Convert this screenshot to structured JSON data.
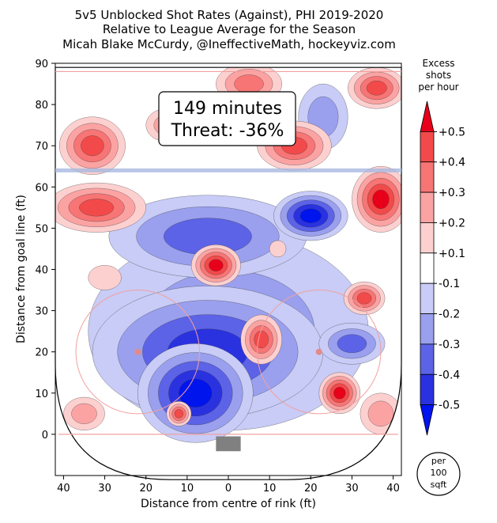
{
  "title": {
    "line1": "5v5 Unblocked Shot Rates (Against), PHI 2019-2020",
    "line2": "Relative to League Average for the Season",
    "line3": "Micah Blake McCurdy, @IneffectiveMath, hockeyviz.com"
  },
  "annotation": {
    "minutes": "149 minutes",
    "threat": "Threat: -36%"
  },
  "colorbar": {
    "title_lines": [
      "Excess",
      "shots",
      "per hour"
    ],
    "levels": [
      "+0.5",
      "+0.4",
      "+0.3",
      "+0.2",
      "+0.1",
      "-0.1",
      "-0.2",
      "-0.3",
      "-0.4",
      "-0.5"
    ],
    "colors": [
      "#e8001a",
      "#f24a4a",
      "#f77575",
      "#fba3a3",
      "#fdd0d0",
      "#ffffff",
      "#c8ccf6",
      "#9aa0ee",
      "#5c63e6",
      "#2a32e0",
      "#0014ee"
    ]
  },
  "unit_badge": [
    "per",
    "100",
    "sqft"
  ],
  "chart_data": {
    "type": "heatmap",
    "xlabel": "Distance from centre of rink (ft)",
    "ylabel": "Distance from goal line (ft)",
    "xlim": [
      -42,
      42
    ],
    "ylim": [
      -10,
      90
    ],
    "x_ticks": [
      40,
      30,
      20,
      10,
      0,
      10,
      20,
      30,
      40
    ],
    "y_ticks": [
      0,
      10,
      20,
      30,
      40,
      50,
      60,
      70,
      80,
      90
    ],
    "colorbar_range": [
      -0.5,
      0.5
    ],
    "regions": [
      {
        "x": 0,
        "y": 25,
        "rx": 34,
        "ry": 24,
        "value": -0.2
      },
      {
        "x": -5,
        "y": 20,
        "rx": 28,
        "ry": 16,
        "value": -0.4
      },
      {
        "x": -8,
        "y": 10,
        "rx": 14,
        "ry": 12,
        "value": -0.5
      },
      {
        "x": -5,
        "y": 48,
        "rx": 24,
        "ry": 10,
        "value": -0.3
      },
      {
        "x": 20,
        "y": 53,
        "rx": 9,
        "ry": 6,
        "value": -0.5
      },
      {
        "x": 30,
        "y": 22,
        "rx": 8,
        "ry": 5,
        "value": -0.3
      },
      {
        "x": 23,
        "y": 77,
        "rx": 6,
        "ry": 8,
        "value": -0.2
      },
      {
        "x": -33,
        "y": 70,
        "rx": 8,
        "ry": 7,
        "value": 0.4
      },
      {
        "x": -32,
        "y": 55,
        "rx": 12,
        "ry": 6,
        "value": 0.4
      },
      {
        "x": -15,
        "y": 75,
        "rx": 5,
        "ry": 4,
        "value": 0.2
      },
      {
        "x": 5,
        "y": 85,
        "rx": 8,
        "ry": 5,
        "value": 0.3
      },
      {
        "x": 16,
        "y": 70,
        "rx": 9,
        "ry": 6,
        "value": 0.4
      },
      {
        "x": 36,
        "y": 84,
        "rx": 7,
        "ry": 5,
        "value": 0.4
      },
      {
        "x": 37,
        "y": 57,
        "rx": 7,
        "ry": 8,
        "value": 0.5
      },
      {
        "x": -3,
        "y": 41,
        "rx": 6,
        "ry": 5,
        "value": 0.5
      },
      {
        "x": 33,
        "y": 33,
        "rx": 5,
        "ry": 4,
        "value": 0.4
      },
      {
        "x": 8,
        "y": 23,
        "rx": 5,
        "ry": 6,
        "value": 0.4
      },
      {
        "x": 27,
        "y": 10,
        "rx": 5,
        "ry": 5,
        "value": 0.5
      },
      {
        "x": -12,
        "y": 5,
        "rx": 3,
        "ry": 3,
        "value": 0.4
      },
      {
        "x": -35,
        "y": 5,
        "rx": 5,
        "ry": 4,
        "value": 0.2
      },
      {
        "x": 37,
        "y": 5,
        "rx": 5,
        "ry": 5,
        "value": 0.2
      },
      {
        "x": -30,
        "y": 38,
        "rx": 4,
        "ry": 3,
        "value": 0.1
      },
      {
        "x": 12,
        "y": 45,
        "rx": 2,
        "ry": 2,
        "value": 0.1
      }
    ]
  }
}
